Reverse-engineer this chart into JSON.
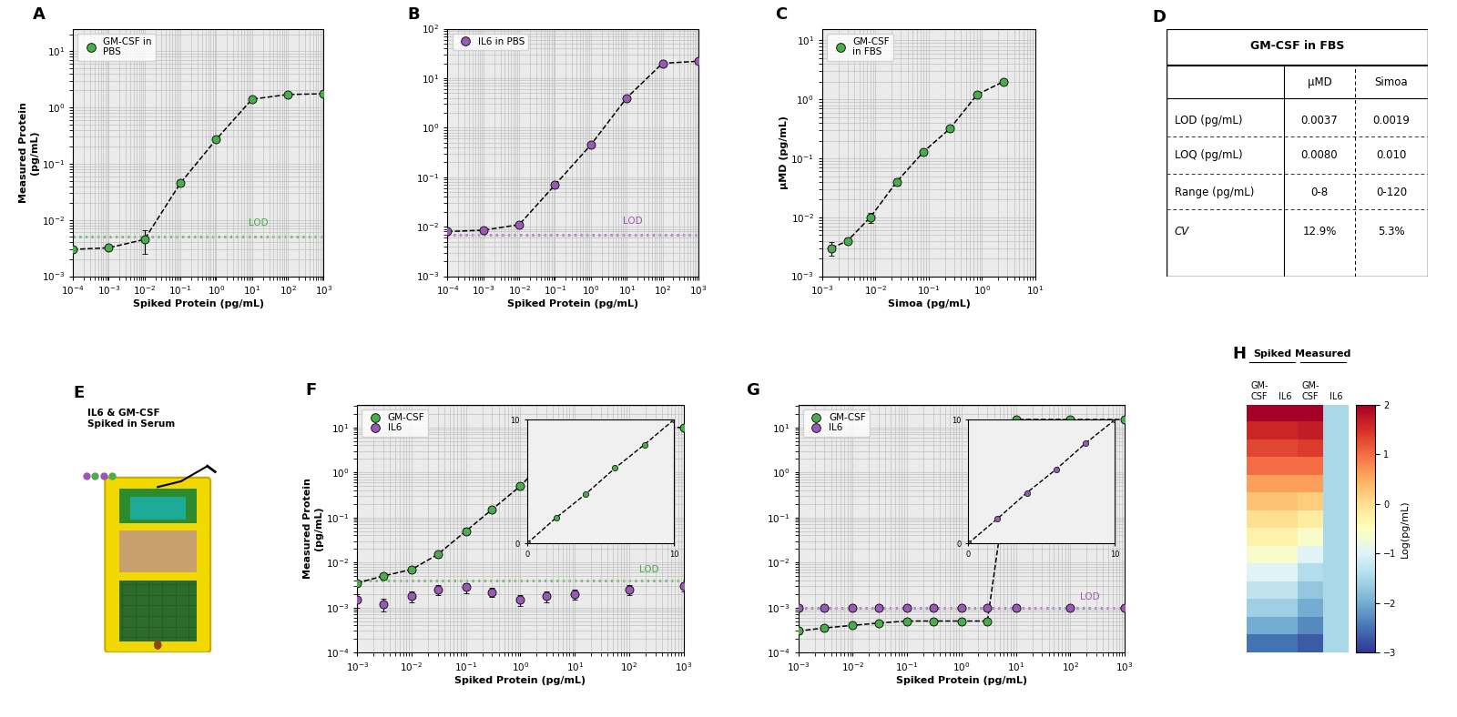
{
  "panel_A": {
    "label": "A",
    "title": "GM-CSF in\nPBS",
    "xlabel": "Spiked Protein (pg/mL)",
    "ylabel": "Measured Protein\n(pg/mL)",
    "color": "#4aac4a",
    "x": [
      0.0001,
      0.001,
      0.01,
      0.1,
      1.0,
      10.0,
      100.0,
      1000.0
    ],
    "y": [
      0.003,
      0.0032,
      0.0045,
      0.045,
      0.27,
      1.4,
      1.7,
      1.75
    ],
    "yerr_lo": [
      0,
      0,
      0.002,
      0.004,
      0,
      0,
      0,
      0
    ],
    "yerr_hi": [
      0,
      0,
      0.002,
      0.004,
      0,
      0,
      0,
      0
    ],
    "lod_y": 0.005,
    "lod_color": "#4aac4a",
    "xlim_log": [
      -4,
      3
    ],
    "ylim_log": [
      -3,
      1.4
    ]
  },
  "panel_B": {
    "label": "B",
    "title": "IL6 in PBS",
    "xlabel": "Spiked Protein (pg/mL)",
    "ylabel": "",
    "color": "#9b59b6",
    "x": [
      0.0001,
      0.001,
      0.01,
      0.1,
      1.0,
      10.0,
      100.0,
      1000.0
    ],
    "y": [
      0.008,
      0.0085,
      0.011,
      0.07,
      0.45,
      4.0,
      20.0,
      22.0
    ],
    "yerr_lo": [
      0,
      0.0003,
      0.0005,
      0.002,
      0.003,
      0.03,
      0,
      0
    ],
    "yerr_hi": [
      0,
      0.0003,
      0.0005,
      0.002,
      0.003,
      0.03,
      0,
      0
    ],
    "lod_y": 0.007,
    "lod_color": "#9b59b6",
    "xlim_log": [
      -4,
      3
    ],
    "ylim_log": [
      -3,
      2
    ]
  },
  "panel_C": {
    "label": "C",
    "title": "GM-CSF\nin FBS",
    "xlabel": "Simoa (pg/mL)",
    "ylabel": "μMD (pg/mL)",
    "color": "#4aac4a",
    "x": [
      0.0015,
      0.003,
      0.008,
      0.025,
      0.08,
      0.25,
      0.8,
      2.5
    ],
    "y": [
      0.003,
      0.004,
      0.01,
      0.04,
      0.13,
      0.32,
      1.2,
      2.0
    ],
    "yerr_lo": [
      0.0008,
      0.0005,
      0.002,
      0.005,
      0.01,
      0.02,
      0.1,
      0.2
    ],
    "yerr_hi": [
      0.0008,
      0.0005,
      0.002,
      0.005,
      0.01,
      0.02,
      0.1,
      0.2
    ],
    "xlim_log": [
      -3,
      1
    ],
    "ylim_log": [
      -3,
      1.2
    ]
  },
  "panel_D": {
    "label": "D",
    "title": "GM-CSF in FBS",
    "rows": [
      "LOD (pg/mL)",
      "LOQ (pg/mL)",
      "Range (pg/mL)",
      "CV"
    ],
    "cols": [
      "μMD",
      "Simoa"
    ],
    "data": [
      [
        "0.0037",
        "0.0019"
      ],
      [
        "0.0080",
        "0.010"
      ],
      [
        "0-8",
        "0-120"
      ],
      [
        "12.9%",
        "5.3%"
      ]
    ]
  },
  "panel_F": {
    "label": "F",
    "xlabel": "Spiked Protein (pg/mL)",
    "ylabel": "Measured Protein\n(pg/mL)",
    "green_color": "#4aac4a",
    "purple_color": "#9b59b6",
    "gx": [
      0.001,
      0.003,
      0.01,
      0.03,
      0.1,
      0.3,
      1.0,
      3.0,
      10.0,
      100.0,
      1000.0
    ],
    "gy": [
      0.0035,
      0.005,
      0.007,
      0.015,
      0.05,
      0.15,
      0.5,
      2.0,
      10.0,
      10.0,
      10.0
    ],
    "gy_err_lo": [
      0.0005,
      0.0008,
      0.001,
      0.002,
      0.008,
      0.02,
      0.08,
      0.3,
      0,
      0,
      0
    ],
    "gy_err_hi": [
      0.0005,
      0.0008,
      0.001,
      0.002,
      0.008,
      0.02,
      0.08,
      0.3,
      0,
      0,
      0
    ],
    "px": [
      0.001,
      0.003,
      0.01,
      0.03,
      0.1,
      0.3,
      1.0,
      3.0,
      10.0,
      100.0,
      1000.0
    ],
    "py": [
      0.0015,
      0.0012,
      0.0018,
      0.0025,
      0.0028,
      0.0022,
      0.0015,
      0.0018,
      0.002,
      0.0025,
      0.003
    ],
    "py_err_lo": [
      0.0005,
      0.0004,
      0.0005,
      0.0006,
      0.0007,
      0.0005,
      0.0004,
      0.0005,
      0.0005,
      0.0006,
      0.0007
    ],
    "py_err_hi": [
      0.0005,
      0.0004,
      0.0005,
      0.0006,
      0.0007,
      0.0005,
      0.0004,
      0.0005,
      0.0005,
      0.0006,
      0.0007
    ],
    "lod_y": 0.004,
    "lod_color": "#4aac4a",
    "xlim_log": [
      -3,
      3
    ],
    "ylim_log": [
      -4,
      1.5
    ]
  },
  "panel_G": {
    "label": "G",
    "xlabel": "Spiked Protein (pg/mL)",
    "ylabel": "",
    "green_color": "#4aac4a",
    "purple_color": "#9b59b6",
    "gx": [
      0.001,
      0.003,
      0.01,
      0.03,
      0.1,
      0.3,
      1.0,
      3.0,
      10.0,
      100.0,
      1000.0
    ],
    "gy": [
      0.0003,
      0.00035,
      0.0004,
      0.00045,
      0.0005,
      0.0005,
      0.0005,
      0.0005,
      15.0,
      15.0,
      15.0
    ],
    "gy_err_lo": [
      5e-05,
      5e-05,
      5e-05,
      5e-05,
      5e-05,
      5e-05,
      5e-05,
      5e-05,
      0,
      0,
      0
    ],
    "gy_err_hi": [
      5e-05,
      5e-05,
      5e-05,
      5e-05,
      5e-05,
      5e-05,
      5e-05,
      5e-05,
      0,
      0,
      0
    ],
    "px": [
      0.001,
      0.003,
      0.01,
      0.03,
      0.1,
      0.3,
      1.0,
      3.0,
      10.0,
      100.0,
      1000.0
    ],
    "py": [
      0.001,
      0.001,
      0.001,
      0.001,
      0.001,
      0.001,
      0.001,
      0.001,
      0.001,
      0.001,
      0.001
    ],
    "py_err_lo": [
      0.0001,
      0.0001,
      0.0001,
      0.0001,
      0.0001,
      0.0001,
      0.0001,
      0.0001,
      0.0001,
      0.0001,
      0.0001
    ],
    "py_err_hi": [
      0.0001,
      0.0001,
      0.0001,
      0.0001,
      0.0001,
      0.0001,
      0.0001,
      0.0001,
      0.0001,
      0.0001,
      0.0001
    ],
    "lod_y": 0.001,
    "lod_color": "#9b59b6",
    "xlim_log": [
      -3,
      3
    ],
    "ylim_log": [
      -4,
      1.5
    ]
  },
  "panel_H": {
    "label": "H",
    "colormap": "RdYlBu_r",
    "vmin": -3,
    "vmax": 2,
    "cbar_label": "Log(pg/mL)",
    "n_rows": 14,
    "n_cols": 4,
    "col0": [
      2.0,
      1.6,
      1.3,
      1.0,
      0.6,
      0.3,
      0.0,
      -0.3,
      -0.6,
      -1.0,
      -1.3,
      -1.6,
      -2.0,
      -2.5
    ],
    "col1": [
      2.0,
      1.6,
      1.3,
      1.0,
      0.6,
      0.3,
      0.0,
      -0.3,
      -0.6,
      -1.0,
      -1.3,
      -1.6,
      -2.0,
      -2.5
    ],
    "col2": [
      2.0,
      1.7,
      1.4,
      1.0,
      0.6,
      0.2,
      -0.2,
      -0.6,
      -1.0,
      -1.4,
      -1.7,
      -2.0,
      -2.3,
      -2.7
    ],
    "col3": [
      -1.5,
      -1.5,
      -1.5,
      -1.5,
      -1.5,
      -1.5,
      -1.5,
      -1.5,
      -1.5,
      -1.5,
      -1.5,
      -1.5,
      -1.5,
      -1.5
    ]
  },
  "bg_color": "#ffffff",
  "grid_color": "#c8c8c8"
}
